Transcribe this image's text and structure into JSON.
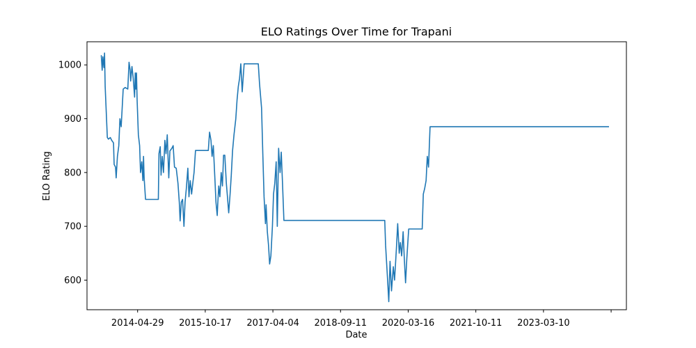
{
  "chart_data": {
    "type": "line",
    "title": "ELO Ratings Over Time for Trapani",
    "xlabel": "Date",
    "ylabel": "ELO Rating",
    "x_ticks": [
      "2014-04-29",
      "2015-10-17",
      "2017-04-04",
      "2018-09-11",
      "2020-03-16",
      "2021-10-11",
      "2023-03-10",
      ""
    ],
    "y_ticks": [
      600,
      700,
      800,
      900,
      1000
    ],
    "xlim": [
      "2013-03-24",
      "2024-12-05"
    ],
    "ylim": [
      545,
      1043
    ],
    "grid": false,
    "color": "#1f77b4",
    "series": [
      {
        "points": [
          [
            "2013-07-15",
            1018
          ],
          [
            "2013-07-22",
            990
          ],
          [
            "2013-07-28",
            1015
          ],
          [
            "2013-08-05",
            995
          ],
          [
            "2013-08-10",
            1022
          ],
          [
            "2013-08-15",
            960
          ],
          [
            "2013-08-25",
            905
          ],
          [
            "2013-09-01",
            865
          ],
          [
            "2013-09-10",
            862
          ],
          [
            "2013-09-25",
            865
          ],
          [
            "2013-10-05",
            860
          ],
          [
            "2013-10-20",
            855
          ],
          [
            "2013-10-25",
            815
          ],
          [
            "2013-11-05",
            810
          ],
          [
            "2013-11-10",
            790
          ],
          [
            "2013-11-20",
            830
          ],
          [
            "2013-12-01",
            850
          ],
          [
            "2013-12-10",
            900
          ],
          [
            "2013-12-20",
            885
          ],
          [
            "2014-01-05",
            955
          ],
          [
            "2014-01-20",
            958
          ],
          [
            "2014-02-10",
            955
          ],
          [
            "2014-02-20",
            1005
          ],
          [
            "2014-03-01",
            990
          ],
          [
            "2014-03-05",
            970
          ],
          [
            "2014-03-15",
            997
          ],
          [
            "2014-03-25",
            975
          ],
          [
            "2014-04-05",
            940
          ],
          [
            "2014-04-10",
            985
          ],
          [
            "2014-04-15",
            955
          ],
          [
            "2014-04-20",
            985
          ],
          [
            "2014-04-25",
            935
          ],
          [
            "2014-05-05",
            870
          ],
          [
            "2014-05-15",
            850
          ],
          [
            "2014-05-22",
            800
          ],
          [
            "2014-06-01",
            820
          ],
          [
            "2014-06-10",
            785
          ],
          [
            "2014-06-15",
            830
          ],
          [
            "2014-06-20",
            790
          ],
          [
            "2014-07-01",
            750
          ],
          [
            "2014-08-15",
            750
          ],
          [
            "2014-10-01",
            750
          ],
          [
            "2014-10-10",
            750
          ],
          [
            "2014-10-15",
            835
          ],
          [
            "2014-10-25",
            848
          ],
          [
            "2014-11-01",
            795
          ],
          [
            "2014-11-10",
            830
          ],
          [
            "2014-11-20",
            800
          ],
          [
            "2014-12-01",
            860
          ],
          [
            "2014-12-10",
            835
          ],
          [
            "2014-12-20",
            870
          ],
          [
            "2015-01-01",
            790
          ],
          [
            "2015-01-10",
            840
          ],
          [
            "2015-01-25",
            845
          ],
          [
            "2015-02-05",
            850
          ],
          [
            "2015-02-15",
            810
          ],
          [
            "2015-03-01",
            808
          ],
          [
            "2015-03-15",
            780
          ],
          [
            "2015-03-25",
            745
          ],
          [
            "2015-04-01",
            710
          ],
          [
            "2015-04-10",
            745
          ],
          [
            "2015-04-20",
            750
          ],
          [
            "2015-05-01",
            700
          ],
          [
            "2015-05-10",
            745
          ],
          [
            "2015-05-20",
            770
          ],
          [
            "2015-06-01",
            808
          ],
          [
            "2015-06-10",
            755
          ],
          [
            "2015-06-20",
            785
          ],
          [
            "2015-07-01",
            760
          ],
          [
            "2015-07-10",
            780
          ],
          [
            "2015-07-20",
            800
          ],
          [
            "2015-08-01",
            841
          ],
          [
            "2015-09-15",
            841
          ],
          [
            "2015-10-25",
            841
          ],
          [
            "2015-11-10",
            841
          ],
          [
            "2015-11-20",
            875
          ],
          [
            "2015-12-01",
            860
          ],
          [
            "2015-12-10",
            830
          ],
          [
            "2015-12-20",
            850
          ],
          [
            "2016-01-01",
            790
          ],
          [
            "2016-01-10",
            745
          ],
          [
            "2016-01-20",
            720
          ],
          [
            "2016-01-25",
            745
          ],
          [
            "2016-02-01",
            775
          ],
          [
            "2016-02-10",
            755
          ],
          [
            "2016-02-20",
            800
          ],
          [
            "2016-03-01",
            775
          ],
          [
            "2016-03-10",
            832
          ],
          [
            "2016-03-20",
            832
          ],
          [
            "2016-04-01",
            780
          ],
          [
            "2016-04-10",
            755
          ],
          [
            "2016-04-20",
            725
          ],
          [
            "2016-05-01",
            760
          ],
          [
            "2016-05-10",
            795
          ],
          [
            "2016-05-20",
            840
          ],
          [
            "2016-06-01",
            870
          ],
          [
            "2016-06-15",
            900
          ],
          [
            "2016-06-25",
            935
          ],
          [
            "2016-07-05",
            960
          ],
          [
            "2016-07-15",
            975
          ],
          [
            "2016-07-25",
            1002
          ],
          [
            "2016-08-05",
            950
          ],
          [
            "2016-08-20",
            1002
          ],
          [
            "2016-09-15",
            1002
          ],
          [
            "2016-11-01",
            1002
          ],
          [
            "2016-12-10",
            1002
          ],
          [
            "2016-12-20",
            965
          ],
          [
            "2017-01-05",
            920
          ],
          [
            "2017-01-15",
            835
          ],
          [
            "2017-01-25",
            755
          ],
          [
            "2017-02-05",
            705
          ],
          [
            "2017-02-10",
            740
          ],
          [
            "2017-02-20",
            690
          ],
          [
            "2017-03-01",
            665
          ],
          [
            "2017-03-10",
            630
          ],
          [
            "2017-03-20",
            645
          ],
          [
            "2017-04-01",
            700
          ],
          [
            "2017-04-10",
            760
          ],
          [
            "2017-04-20",
            780
          ],
          [
            "2017-05-01",
            820
          ],
          [
            "2017-05-10",
            700
          ],
          [
            "2017-05-20",
            845
          ],
          [
            "2017-06-01",
            800
          ],
          [
            "2017-06-10",
            838
          ],
          [
            "2017-06-20",
            780
          ],
          [
            "2017-07-01",
            711
          ],
          [
            "2018-01-01",
            711
          ],
          [
            "2018-09-11",
            711
          ],
          [
            "2019-03-01",
            711
          ],
          [
            "2019-09-08",
            711
          ],
          [
            "2019-09-15",
            665
          ],
          [
            "2019-10-01",
            600
          ],
          [
            "2019-10-10",
            560
          ],
          [
            "2019-10-20",
            635
          ],
          [
            "2019-11-01",
            580
          ],
          [
            "2019-11-15",
            625
          ],
          [
            "2019-11-25",
            600
          ],
          [
            "2019-12-10",
            660
          ],
          [
            "2019-12-20",
            705
          ],
          [
            "2020-01-01",
            650
          ],
          [
            "2020-01-10",
            670
          ],
          [
            "2020-01-20",
            645
          ],
          [
            "2020-02-01",
            690
          ],
          [
            "2020-02-10",
            640
          ],
          [
            "2020-02-20",
            595
          ],
          [
            "2020-03-01",
            640
          ],
          [
            "2020-03-16",
            695
          ],
          [
            "2020-05-01",
            695
          ],
          [
            "2020-07-01",
            695
          ],
          [
            "2020-07-10",
            760
          ],
          [
            "2020-07-20",
            770
          ],
          [
            "2020-08-01",
            785
          ],
          [
            "2020-08-10",
            830
          ],
          [
            "2020-08-20",
            810
          ],
          [
            "2020-09-01",
            885
          ],
          [
            "2021-10-11",
            885
          ],
          [
            "2023-03-10",
            885
          ],
          [
            "2024-07-20",
            885
          ]
        ]
      }
    ]
  }
}
